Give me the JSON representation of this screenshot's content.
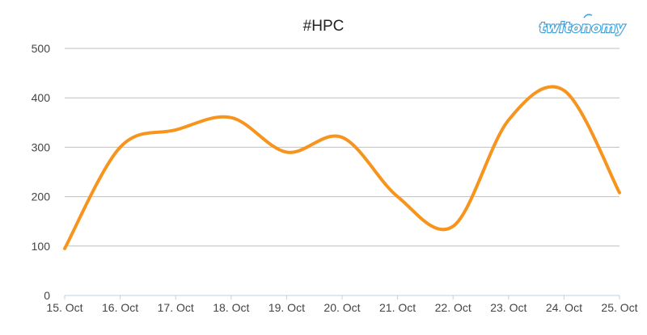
{
  "brand": {
    "logo_text": "twitonomy"
  },
  "chart_data": {
    "type": "line",
    "title": "#HPC",
    "xlabel": "",
    "ylabel": "",
    "categories": [
      "15. Oct",
      "16. Oct",
      "17. Oct",
      "18. Oct",
      "19. Oct",
      "20. Oct",
      "21. Oct",
      "22. Oct",
      "23. Oct",
      "24. Oct",
      "25. Oct"
    ],
    "series": [
      {
        "values": [
          95,
          300,
          335,
          360,
          290,
          320,
          200,
          140,
          355,
          415,
          208
        ],
        "color": "#f7941d"
      }
    ],
    "ylim": [
      0,
      500
    ],
    "yticks": [
      0,
      100,
      200,
      300,
      400,
      500
    ],
    "grid": true,
    "legend": "none"
  }
}
